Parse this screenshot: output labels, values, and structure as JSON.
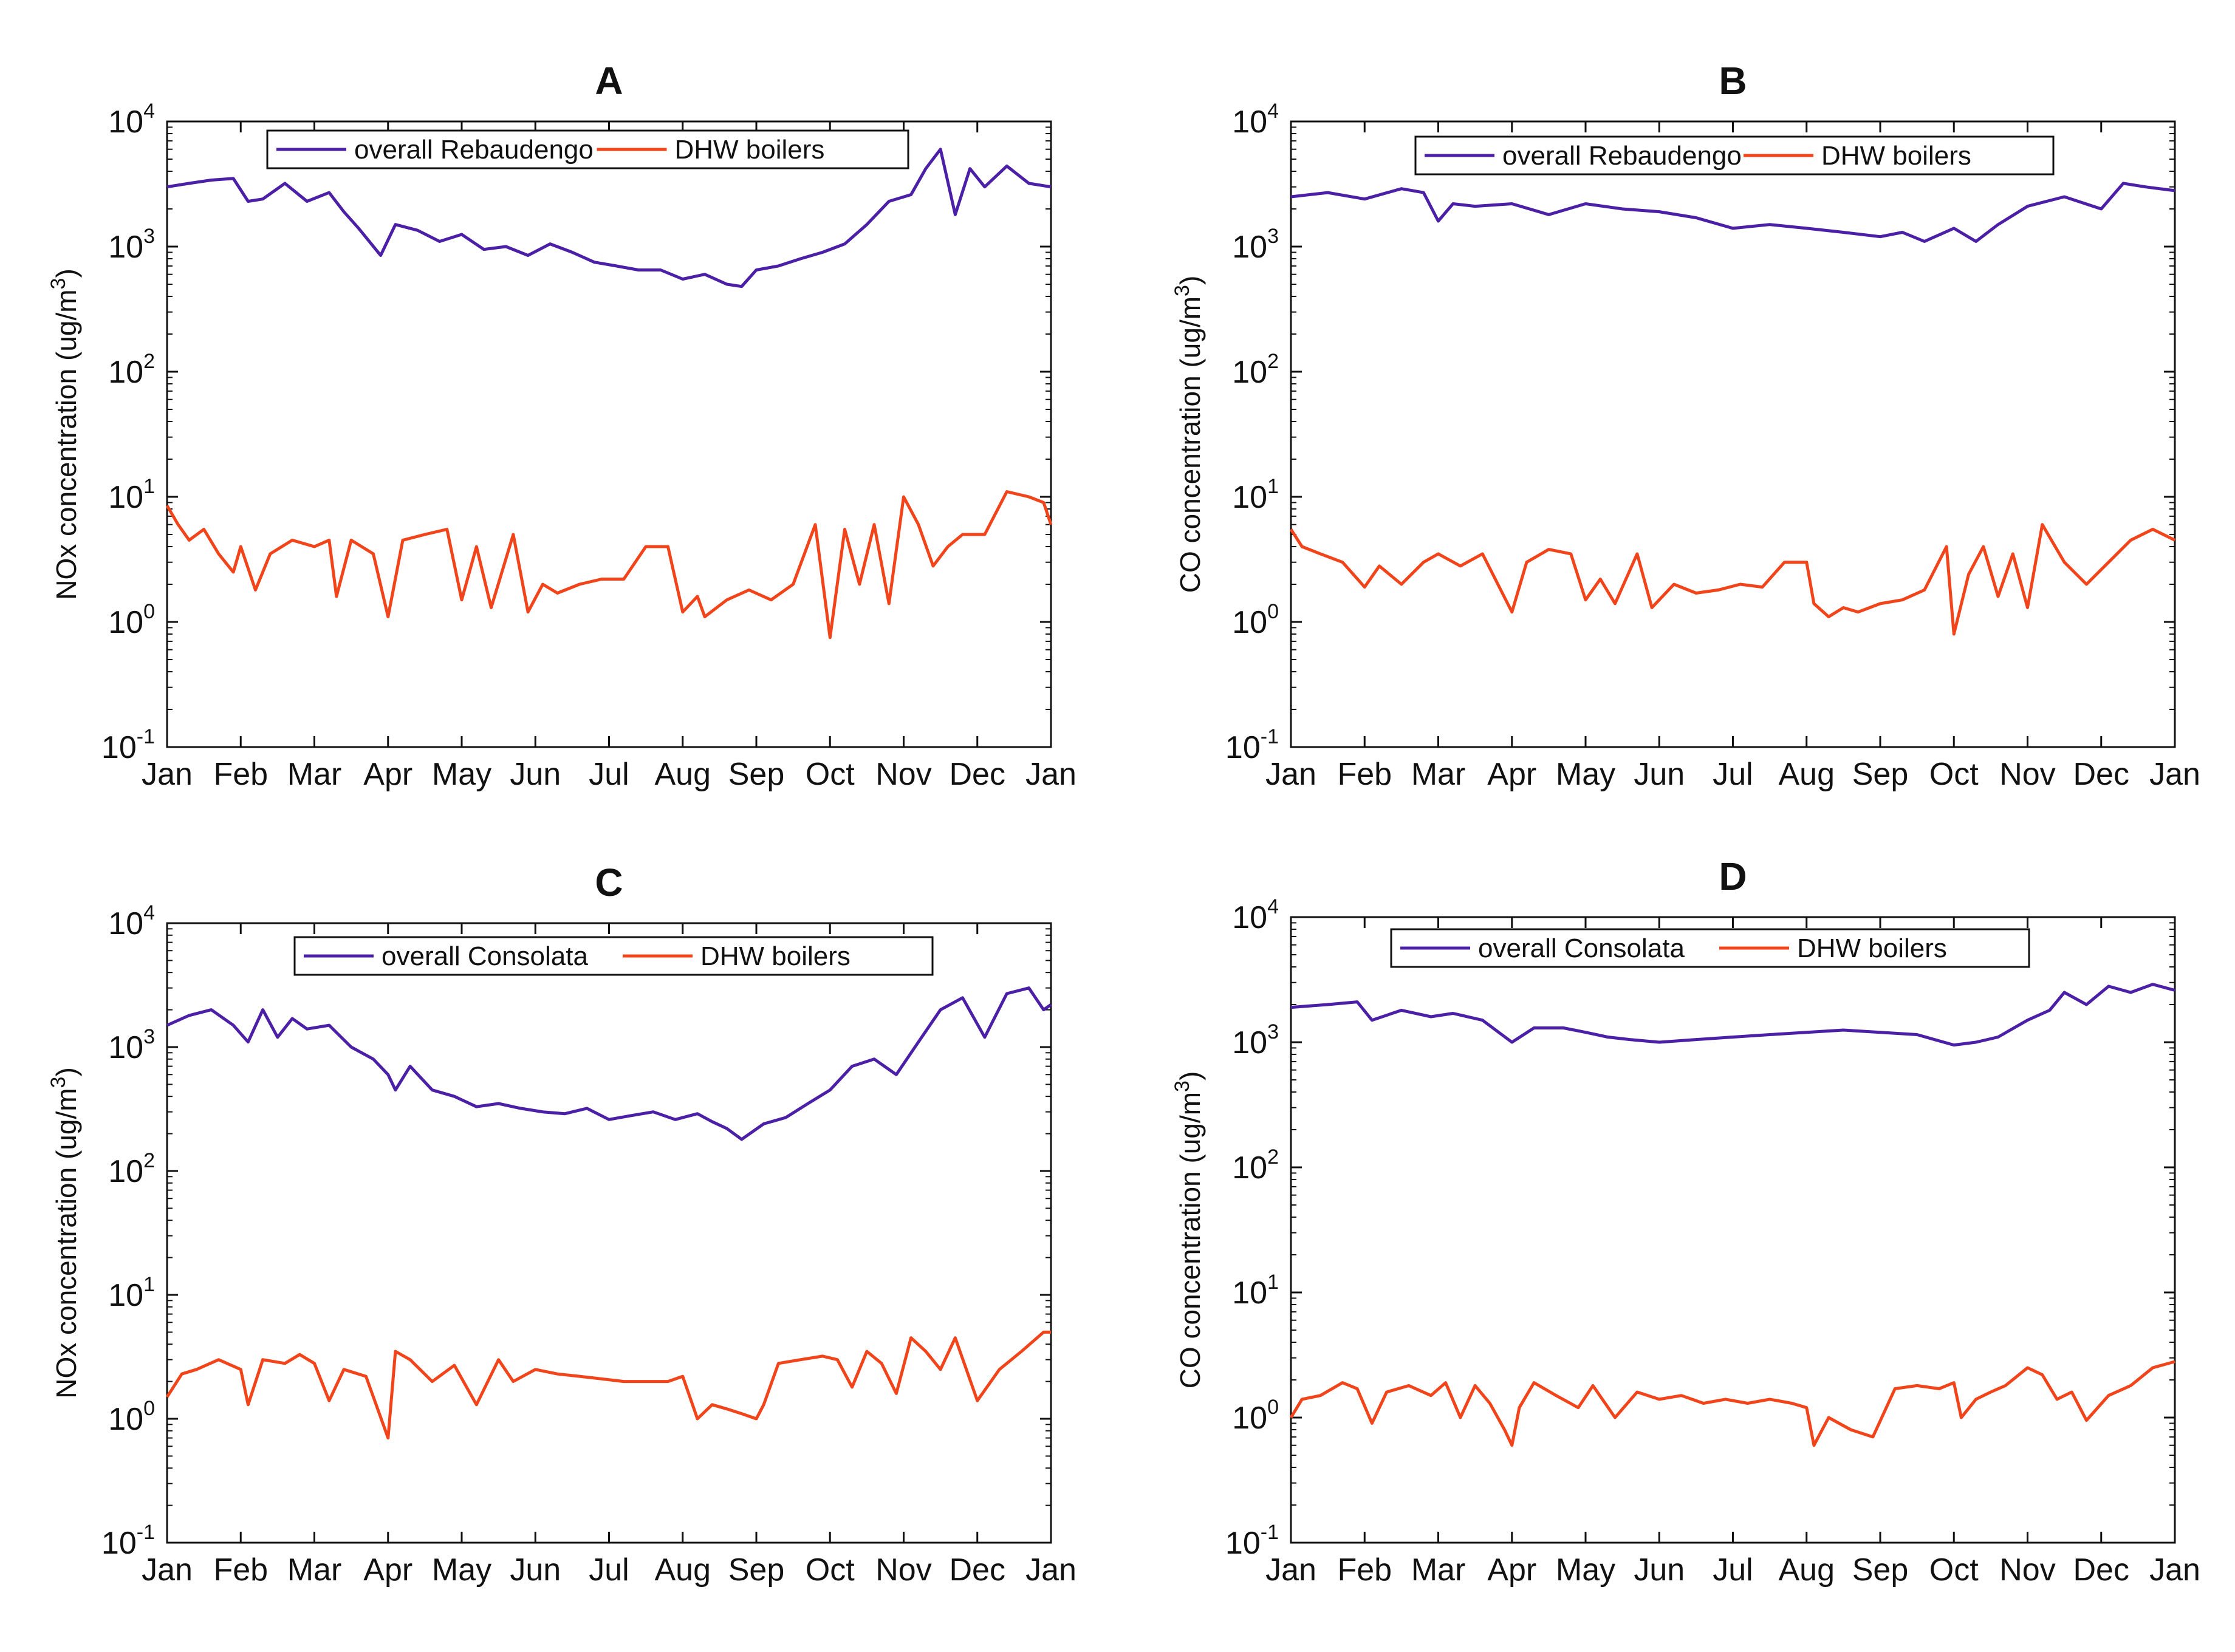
{
  "colors": {
    "overall": "#4B1FA6",
    "dhw": "#F2441A",
    "axis": "#111111",
    "background": "#ffffff"
  },
  "months": [
    "Jan",
    "Feb",
    "Mar",
    "Apr",
    "May",
    "Jun",
    "Jul",
    "Aug",
    "Sep",
    "Oct",
    "Nov",
    "Dec",
    "Jan"
  ],
  "chart_data": [
    {
      "type": "line",
      "panel": "A",
      "title": "A",
      "yscale": "log",
      "ylim": [
        0.1,
        10000
      ],
      "ylabel": "NOx concentration (ug/m³)",
      "ylabel_parts": {
        "main": "NOx concentration (ug/m",
        "sup": "3",
        "end": ")"
      },
      "xlabel": "",
      "ytick_labels": [
        {
          "value": 0.1,
          "base": "10",
          "exp": "-1"
        },
        {
          "value": 1,
          "base": "10",
          "exp": "0"
        },
        {
          "value": 10,
          "base": "10",
          "exp": "1"
        },
        {
          "value": 100,
          "base": "10",
          "exp": "2"
        },
        {
          "value": 1000,
          "base": "10",
          "exp": "3"
        },
        {
          "value": 10000,
          "base": "10",
          "exp": "4"
        }
      ],
      "x_months": [
        0,
        1,
        2,
        3,
        4,
        5,
        6,
        7,
        8,
        9,
        10,
        11,
        12
      ],
      "legend": [
        "overall Rebaudengo",
        "DHW boilers"
      ],
      "series": [
        {
          "name": "overall Rebaudengo",
          "color_key": "overall",
          "x": [
            0,
            0.3,
            0.6,
            0.9,
            1.1,
            1.3,
            1.6,
            1.9,
            2.2,
            2.4,
            2.6,
            2.9,
            3.1,
            3.4,
            3.7,
            4.0,
            4.3,
            4.6,
            4.9,
            5.2,
            5.5,
            5.8,
            6.1,
            6.4,
            6.7,
            7.0,
            7.3,
            7.6,
            7.8,
            8.0,
            8.3,
            8.6,
            8.9,
            9.2,
            9.5,
            9.8,
            10.1,
            10.3,
            10.5,
            10.7,
            10.9,
            11.1,
            11.4,
            11.7,
            12.0
          ],
          "values": [
            3000,
            3200,
            3400,
            3500,
            2300,
            2400,
            3200,
            2300,
            2700,
            1900,
            1400,
            850,
            1500,
            1350,
            1100,
            1250,
            950,
            1000,
            850,
            1050,
            900,
            750,
            700,
            650,
            650,
            550,
            600,
            500,
            480,
            650,
            700,
            800,
            900,
            1050,
            1500,
            2300,
            2600,
            4200,
            6000,
            1800,
            4200,
            3000,
            4400,
            3200,
            3000
          ]
        },
        {
          "name": "DHW boilers",
          "color_key": "dhw",
          "x": [
            0,
            0.15,
            0.3,
            0.5,
            0.7,
            0.9,
            1.0,
            1.2,
            1.4,
            1.7,
            2.0,
            2.2,
            2.3,
            2.5,
            2.8,
            3.0,
            3.2,
            3.5,
            3.8,
            4.0,
            4.2,
            4.4,
            4.7,
            4.9,
            5.1,
            5.3,
            5.6,
            5.9,
            6.2,
            6.5,
            6.8,
            7.0,
            7.2,
            7.3,
            7.6,
            7.9,
            8.2,
            8.5,
            8.8,
            9.0,
            9.2,
            9.4,
            9.6,
            9.8,
            10.0,
            10.2,
            10.4,
            10.6,
            10.8,
            11.1,
            11.4,
            11.7,
            11.9,
            12.0
          ],
          "values": [
            8.5,
            6,
            4.5,
            5.5,
            3.5,
            2.5,
            4,
            1.8,
            3.5,
            4.5,
            4,
            4.5,
            1.6,
            4.5,
            3.5,
            1.1,
            4.5,
            5,
            5.5,
            1.5,
            4,
            1.3,
            5,
            1.2,
            2,
            1.7,
            2,
            2.2,
            2.2,
            4,
            4,
            1.2,
            1.6,
            1.1,
            1.5,
            1.8,
            1.5,
            2,
            6,
            0.75,
            5.5,
            2,
            6,
            1.4,
            10,
            6,
            2.8,
            4,
            5,
            5,
            11,
            10,
            9,
            6
          ]
        }
      ]
    },
    {
      "type": "line",
      "panel": "B",
      "title": "B",
      "yscale": "log",
      "ylim": [
        0.1,
        10000
      ],
      "ylabel": "CO concentration (ug/m³)",
      "ylabel_parts": {
        "main": "CO concentration (ug/m",
        "sup": "3",
        "end": ")"
      },
      "xlabel": "",
      "ytick_labels": [
        {
          "value": 0.1,
          "base": "10",
          "exp": "-1"
        },
        {
          "value": 1,
          "base": "10",
          "exp": "0"
        },
        {
          "value": 10,
          "base": "10",
          "exp": "1"
        },
        {
          "value": 100,
          "base": "10",
          "exp": "2"
        },
        {
          "value": 1000,
          "base": "10",
          "exp": "3"
        },
        {
          "value": 10000,
          "base": "10",
          "exp": "4"
        }
      ],
      "x_months": [
        0,
        1,
        2,
        3,
        4,
        5,
        6,
        7,
        8,
        9,
        10,
        11,
        12
      ],
      "legend": [
        "overall Rebaudengo",
        "DHW boilers"
      ],
      "series": [
        {
          "name": "overall Rebaudengo",
          "color_key": "overall",
          "x": [
            0,
            0.5,
            1.0,
            1.5,
            1.8,
            2.0,
            2.2,
            2.5,
            3.0,
            3.5,
            4.0,
            4.5,
            5.0,
            5.5,
            6.0,
            6.5,
            7.0,
            7.5,
            8.0,
            8.3,
            8.6,
            9.0,
            9.3,
            9.6,
            10.0,
            10.5,
            11.0,
            11.3,
            11.6,
            12.0
          ],
          "values": [
            2500,
            2700,
            2400,
            2900,
            2700,
            1600,
            2200,
            2100,
            2200,
            1800,
            2200,
            2000,
            1900,
            1700,
            1400,
            1500,
            1400,
            1300,
            1200,
            1300,
            1100,
            1400,
            1100,
            1500,
            2100,
            2500,
            2000,
            3200,
            3000,
            2800
          ]
        },
        {
          "name": "DHW boilers",
          "color_key": "dhw",
          "x": [
            0,
            0.15,
            0.4,
            0.7,
            1.0,
            1.2,
            1.5,
            1.8,
            2.0,
            2.3,
            2.6,
            3.0,
            3.2,
            3.5,
            3.8,
            4.0,
            4.2,
            4.4,
            4.7,
            4.9,
            5.2,
            5.5,
            5.8,
            6.1,
            6.4,
            6.7,
            7.0,
            7.1,
            7.3,
            7.5,
            7.7,
            8.0,
            8.3,
            8.6,
            8.9,
            9.0,
            9.2,
            9.4,
            9.6,
            9.8,
            10.0,
            10.2,
            10.5,
            10.8,
            11.1,
            11.4,
            11.7,
            12.0
          ],
          "values": [
            5.5,
            4,
            3.5,
            3,
            1.9,
            2.8,
            2,
            3,
            3.5,
            2.8,
            3.5,
            1.2,
            3,
            3.8,
            3.5,
            1.5,
            2.2,
            1.4,
            3.5,
            1.3,
            2,
            1.7,
            1.8,
            2,
            1.9,
            3,
            3,
            1.4,
            1.1,
            1.3,
            1.2,
            1.4,
            1.5,
            1.8,
            4,
            0.8,
            2.4,
            4,
            1.6,
            3.5,
            1.3,
            6,
            3,
            2,
            3,
            4.5,
            5.5,
            4.5
          ]
        }
      ]
    },
    {
      "type": "line",
      "panel": "C",
      "title": "C",
      "yscale": "log",
      "ylim": [
        0.1,
        10000
      ],
      "ylabel": "NOx concentration (ug/m³)",
      "ylabel_parts": {
        "main": "NOx concentration (ug/m",
        "sup": "3",
        "end": ")"
      },
      "xlabel": "",
      "ytick_labels": [
        {
          "value": 0.1,
          "base": "10",
          "exp": "-1"
        },
        {
          "value": 1,
          "base": "10",
          "exp": "0"
        },
        {
          "value": 10,
          "base": "10",
          "exp": "1"
        },
        {
          "value": 100,
          "base": "10",
          "exp": "2"
        },
        {
          "value": 1000,
          "base": "10",
          "exp": "3"
        },
        {
          "value": 10000,
          "base": "10",
          "exp": "4"
        }
      ],
      "x_months": [
        0,
        1,
        2,
        3,
        4,
        5,
        6,
        7,
        8,
        9,
        10,
        11,
        12
      ],
      "legend": [
        "overall Consolata",
        "DHW boilers"
      ],
      "series": [
        {
          "name": "overall Consolata",
          "color_key": "overall",
          "x": [
            0,
            0.3,
            0.6,
            0.9,
            1.1,
            1.3,
            1.5,
            1.7,
            1.9,
            2.2,
            2.5,
            2.8,
            3.0,
            3.1,
            3.3,
            3.6,
            3.9,
            4.2,
            4.5,
            4.8,
            5.1,
            5.4,
            5.7,
            6.0,
            6.3,
            6.6,
            6.9,
            7.2,
            7.4,
            7.6,
            7.8,
            8.1,
            8.4,
            8.7,
            9.0,
            9.3,
            9.6,
            9.9,
            10.2,
            10.5,
            10.8,
            11.1,
            11.4,
            11.7,
            11.9,
            12.0
          ],
          "values": [
            1500,
            1800,
            2000,
            1500,
            1100,
            2000,
            1200,
            1700,
            1400,
            1500,
            1000,
            800,
            600,
            450,
            700,
            450,
            400,
            330,
            350,
            320,
            300,
            290,
            320,
            260,
            280,
            300,
            260,
            290,
            250,
            220,
            180,
            240,
            270,
            350,
            450,
            700,
            800,
            600,
            1100,
            2000,
            2500,
            1200,
            2700,
            3000,
            2000,
            2200
          ]
        },
        {
          "name": "DHW boilers",
          "color_key": "dhw",
          "x": [
            0,
            0.2,
            0.4,
            0.7,
            1.0,
            1.1,
            1.3,
            1.6,
            1.8,
            2.0,
            2.2,
            2.4,
            2.7,
            3.0,
            3.1,
            3.3,
            3.6,
            3.9,
            4.2,
            4.5,
            4.7,
            5.0,
            5.3,
            5.6,
            5.9,
            6.2,
            6.5,
            6.8,
            7.0,
            7.2,
            7.4,
            7.6,
            7.8,
            8.0,
            8.1,
            8.3,
            8.6,
            8.9,
            9.1,
            9.3,
            9.5,
            9.7,
            9.9,
            10.1,
            10.3,
            10.5,
            10.7,
            11.0,
            11.3,
            11.6,
            11.9,
            12.0
          ],
          "values": [
            1.5,
            2.3,
            2.5,
            3,
            2.5,
            1.3,
            3,
            2.8,
            3.3,
            2.8,
            1.4,
            2.5,
            2.2,
            0.7,
            3.5,
            3,
            2,
            2.7,
            1.3,
            3,
            2,
            2.5,
            2.3,
            2.2,
            2.1,
            2,
            2,
            2,
            2.2,
            1,
            1.3,
            1.2,
            1.1,
            1,
            1.3,
            2.8,
            3,
            3.2,
            3,
            1.8,
            3.5,
            2.8,
            1.6,
            4.5,
            3.5,
            2.5,
            4.5,
            1.4,
            2.5,
            3.5,
            5,
            5
          ]
        }
      ]
    },
    {
      "type": "line",
      "panel": "D",
      "title": "D",
      "yscale": "log",
      "ylim": [
        0.1,
        10000
      ],
      "ylabel": "CO concentration (ug/m³)",
      "ylabel_parts": {
        "main": "CO concentration (ug/m",
        "sup": "3",
        "end": ")"
      },
      "xlabel": "",
      "ytick_labels": [
        {
          "value": 0.1,
          "base": "10",
          "exp": "-1"
        },
        {
          "value": 1,
          "base": "10",
          "exp": "0"
        },
        {
          "value": 10,
          "base": "10",
          "exp": "1"
        },
        {
          "value": 100,
          "base": "10",
          "exp": "2"
        },
        {
          "value": 1000,
          "base": "10",
          "exp": "3"
        },
        {
          "value": 10000,
          "base": "10",
          "exp": "4"
        }
      ],
      "x_months": [
        0,
        1,
        2,
        3,
        4,
        5,
        6,
        7,
        8,
        9,
        10,
        11,
        12
      ],
      "legend": [
        "overall Consolata",
        "DHW boilers"
      ],
      "series": [
        {
          "name": "overall Consolata",
          "color_key": "overall",
          "x": [
            0,
            0.5,
            0.9,
            1.1,
            1.5,
            1.9,
            2.2,
            2.6,
            3.0,
            3.3,
            3.7,
            4.0,
            4.3,
            4.6,
            5.0,
            5.5,
            6.0,
            6.5,
            7.0,
            7.5,
            8.0,
            8.5,
            9.0,
            9.3,
            9.6,
            10.0,
            10.3,
            10.5,
            10.8,
            11.1,
            11.4,
            11.7,
            12.0
          ],
          "values": [
            1900,
            2000,
            2100,
            1500,
            1800,
            1600,
            1700,
            1500,
            1000,
            1300,
            1300,
            1200,
            1100,
            1050,
            1000,
            1050,
            1100,
            1150,
            1200,
            1250,
            1200,
            1150,
            950,
            1000,
            1100,
            1500,
            1800,
            2500,
            2000,
            2800,
            2500,
            2900,
            2600
          ]
        },
        {
          "name": "DHW boilers",
          "color_key": "dhw",
          "x": [
            0,
            0.15,
            0.4,
            0.7,
            0.9,
            1.1,
            1.3,
            1.6,
            1.9,
            2.1,
            2.3,
            2.5,
            2.7,
            2.9,
            3.0,
            3.1,
            3.3,
            3.6,
            3.9,
            4.1,
            4.4,
            4.7,
            5.0,
            5.3,
            5.6,
            5.9,
            6.2,
            6.5,
            6.8,
            7.0,
            7.1,
            7.3,
            7.6,
            7.9,
            8.2,
            8.5,
            8.8,
            9.0,
            9.1,
            9.3,
            9.5,
            9.7,
            10.0,
            10.2,
            10.4,
            10.6,
            10.8,
            11.1,
            11.4,
            11.7,
            12.0
          ],
          "values": [
            1,
            1.4,
            1.5,
            1.9,
            1.7,
            0.9,
            1.6,
            1.8,
            1.5,
            1.9,
            1,
            1.8,
            1.3,
            0.8,
            0.6,
            1.2,
            1.9,
            1.5,
            1.2,
            1.8,
            1,
            1.6,
            1.4,
            1.5,
            1.3,
            1.4,
            1.3,
            1.4,
            1.3,
            1.2,
            0.6,
            1,
            0.8,
            0.7,
            1.7,
            1.8,
            1.7,
            1.9,
            1,
            1.4,
            1.6,
            1.8,
            2.5,
            2.2,
            1.4,
            1.6,
            0.95,
            1.5,
            1.8,
            2.5,
            2.8
          ]
        }
      ]
    }
  ]
}
